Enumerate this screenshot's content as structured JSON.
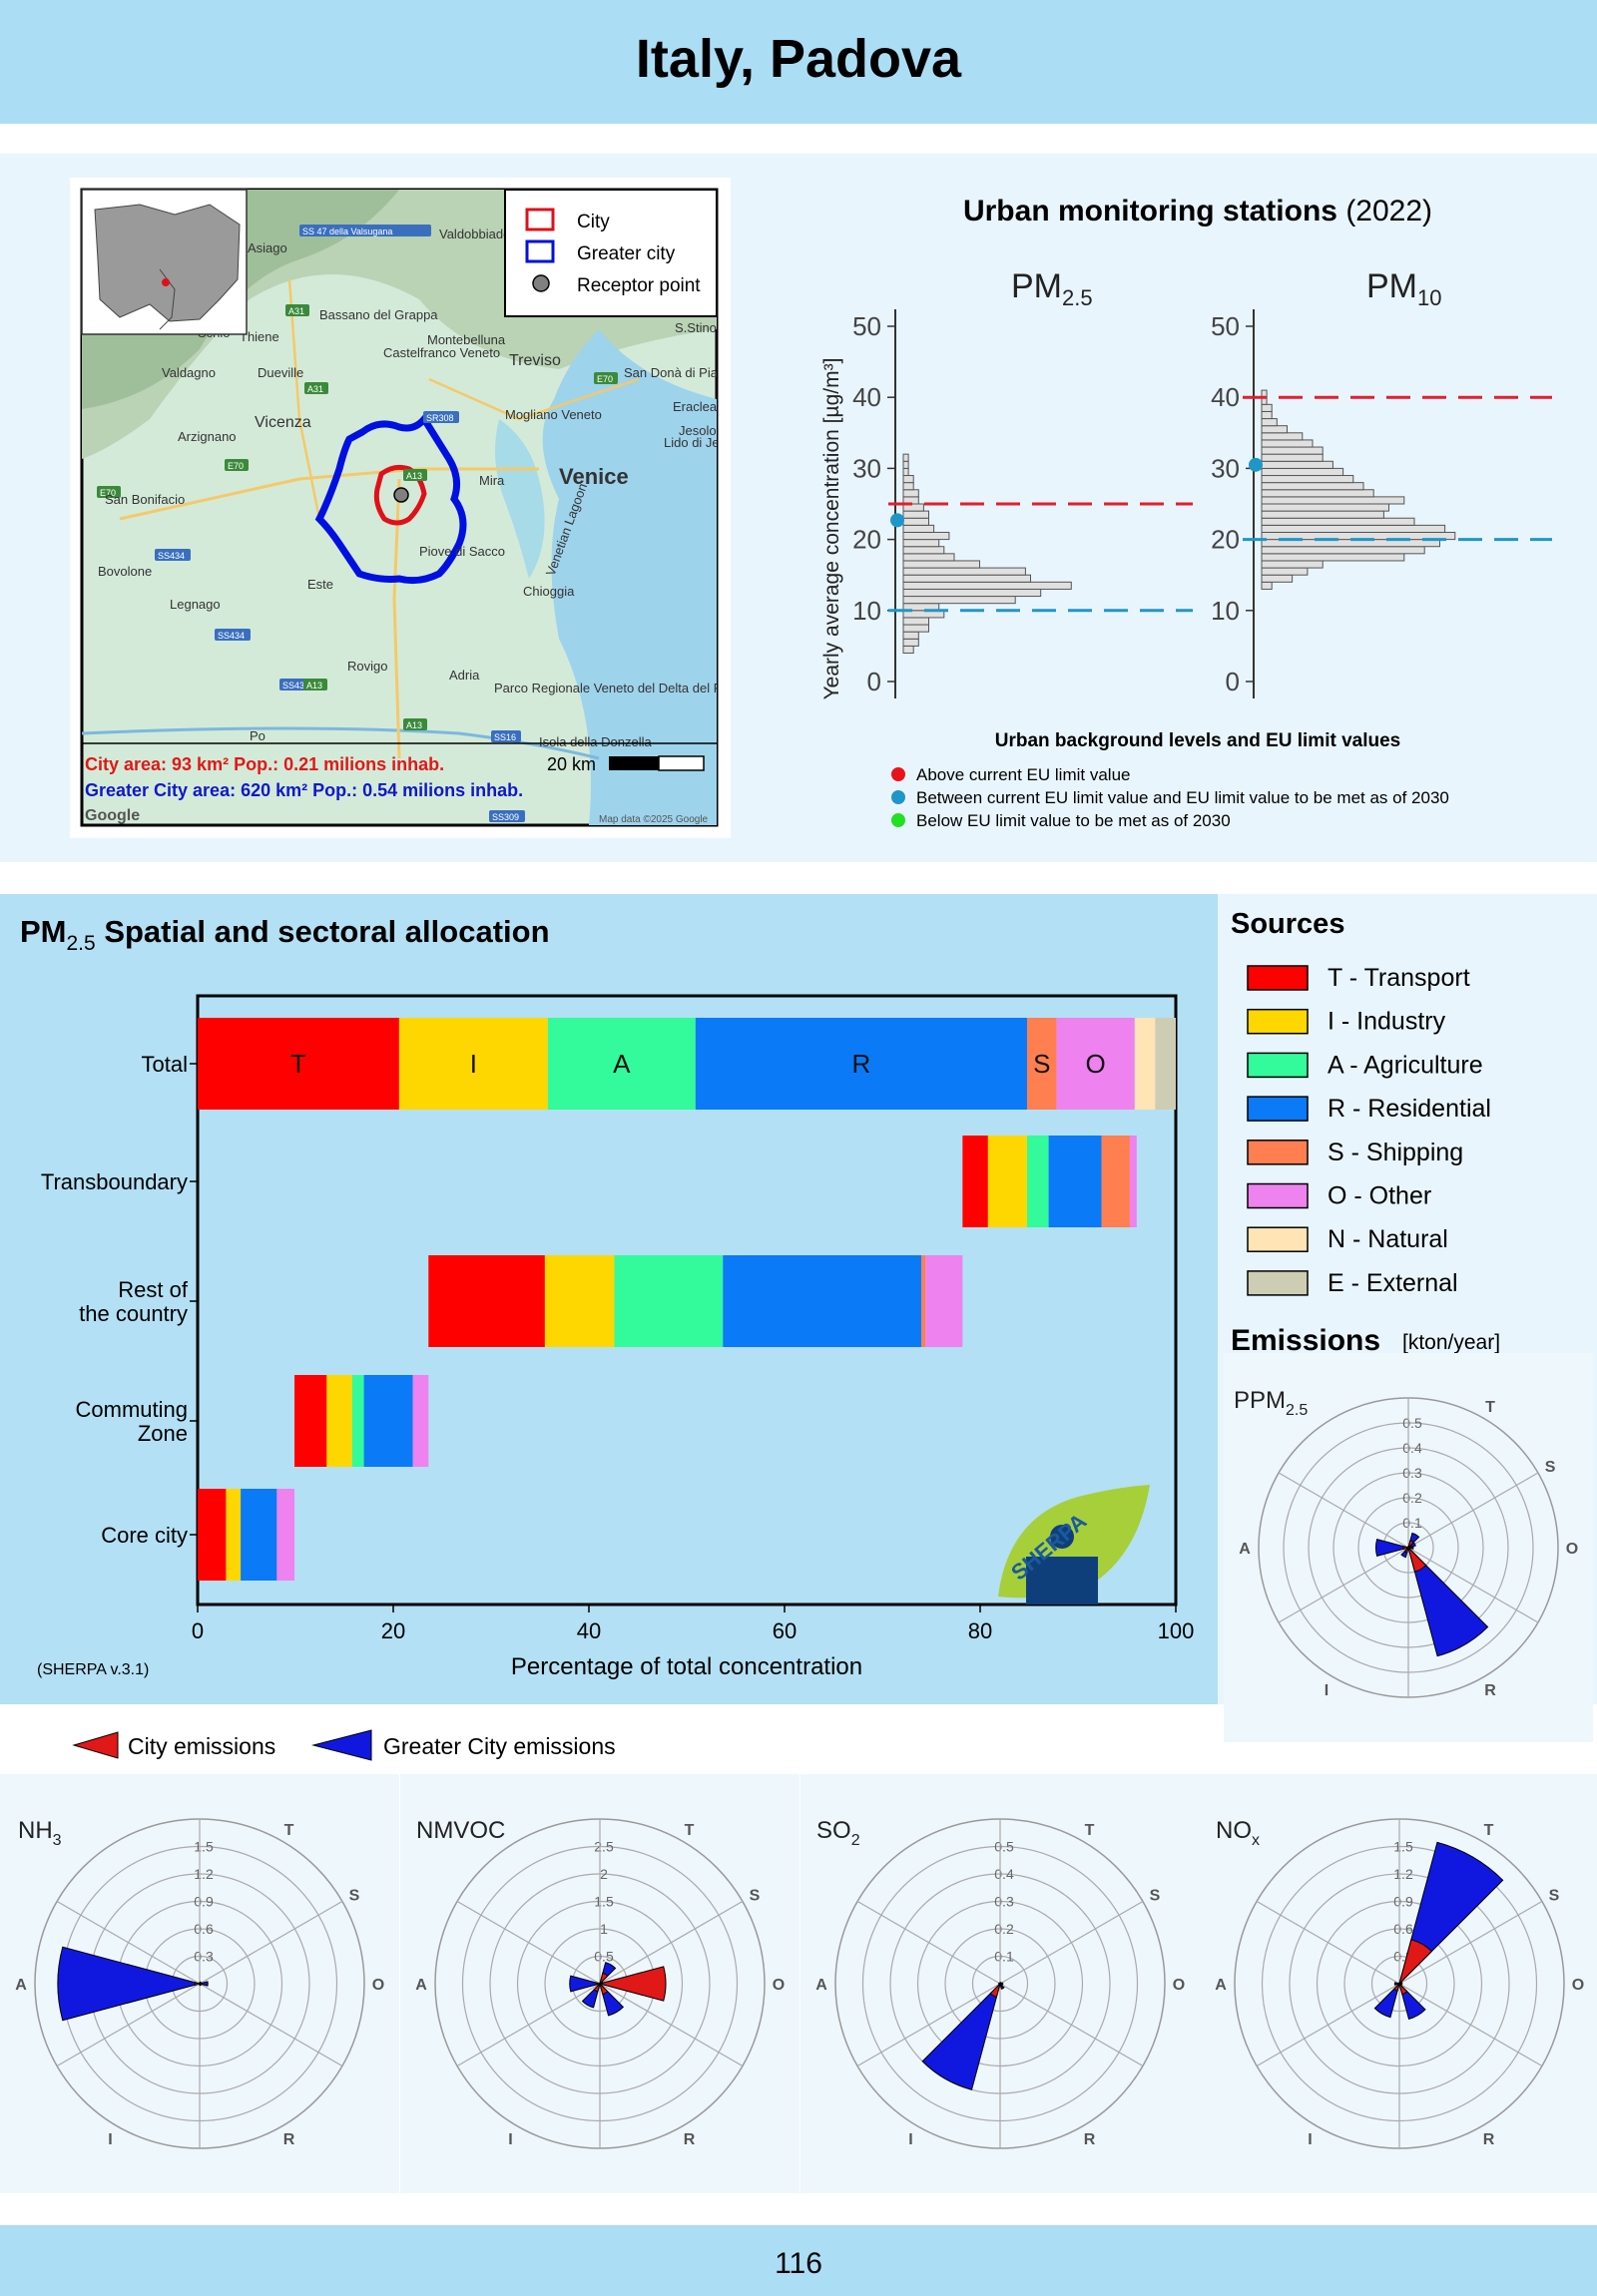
{
  "header": {
    "title": "Italy, Padova"
  },
  "map": {
    "legend": [
      "City",
      "Greater city",
      "Receptor point"
    ],
    "labels": [
      "Venice",
      "Vicenza",
      "Treviso",
      "Chioggia",
      "Rovigo",
      "Este",
      "Legnago",
      "Bovolone",
      "San Bonifacio",
      "Arzignano",
      "Valdagno",
      "Schio",
      "Thiene",
      "Dueville",
      "Asiago",
      "Bassano del Grappa",
      "Castelfranco Veneto",
      "Montebelluna",
      "Valdobbiadene",
      "San Donà di Piave",
      "Eraclea",
      "Jesolo",
      "Lido di Jesolo",
      "Mogliano Veneto",
      "Mira",
      "Piove di Sacco",
      "Adria",
      "Parco Regionale Veneto del Delta del Po",
      "Isola della Donzella",
      "Venetian Lagoon",
      "Po",
      "S.Stino di Livenza"
    ],
    "roads": [
      "SS 47 della Valsugana",
      "SS434",
      "SS434",
      "SS434",
      "SR308",
      "A13",
      "A13",
      "A13",
      "A31",
      "A31",
      "E70",
      "E70",
      "E70",
      "SS16",
      "SS309"
    ],
    "scale": "20 km",
    "city_area": "City area: 93 km² Pop.: 0.21 milions inhab.",
    "greater_area": "Greater City area: 620 km² Pop.: 0.54 milions inhab.",
    "google": "Google",
    "attribution": "Map data ©2025 Google"
  },
  "monitoring": {
    "title_bold": "Urban monitoring stations",
    "title_year": "(2022)",
    "pm25_label": "PM",
    "pm25_sub": "2.5",
    "pm10_label": "PM",
    "pm10_sub": "10",
    "ylabel": "Yearly average concentration [µg/m³]",
    "subtitle": "Urban background levels and EU limit values",
    "legend": [
      {
        "text": "Above current EU limit value",
        "color": "#e8141a"
      },
      {
        "text": "Between current EU limit value and EU limit value to be met as of 2030",
        "color": "#1f96c8"
      },
      {
        "text": "Below EU limit value to be met as of 2030",
        "color": "#22e022"
      }
    ]
  },
  "allocation": {
    "title": "PM",
    "title_sub": "2.5",
    "title_rest": " Spatial and sectoral allocation",
    "xlabel": "Percentage of total concentration",
    "version": "(SHERPA v.3.1)",
    "logo_text": "SHERPA"
  },
  "sources": {
    "title": "Sources",
    "items": [
      {
        "code": "T",
        "label": "T - Transport",
        "color": "#ff0000"
      },
      {
        "code": "I",
        "label": "I - Industry",
        "color": "#ffd700"
      },
      {
        "code": "A",
        "label": "A - Agriculture",
        "color": "#33fa9b"
      },
      {
        "code": "R",
        "label": "R - Residential",
        "color": "#0a7af7"
      },
      {
        "code": "S",
        "label": "S - Shipping",
        "color": "#ff7f50"
      },
      {
        "code": "O",
        "label": "O - Other",
        "color": "#ee82ee"
      },
      {
        "code": "N",
        "label": "N - Natural",
        "color": "#ffe4b5"
      },
      {
        "code": "E",
        "label": "E - External",
        "color": "#cdcdb4"
      }
    ]
  },
  "emissions": {
    "title": "Emissions",
    "unit": "[kton/year]",
    "city_label": "City emissions",
    "greater_label": "Greater City emissions"
  },
  "page": {
    "number": "116"
  },
  "chart_data": [
    {
      "type": "histogram",
      "name": "pm25",
      "title": "PM2.5",
      "ylim": [
        0,
        52
      ],
      "yticks": [
        0,
        10,
        20,
        30,
        40,
        50
      ],
      "bin_width": 1,
      "bins_start": 4,
      "counts": [
        2,
        3,
        3,
        5,
        5,
        8,
        7,
        22,
        27,
        33,
        25,
        24,
        15,
        10,
        8,
        7,
        9,
        6,
        5,
        5,
        4,
        3,
        3,
        2,
        2,
        1,
        1,
        1
      ],
      "limit_current": 25,
      "limit_2030": 10,
      "city_value": 22.7,
      "city_status": "between"
    },
    {
      "type": "histogram",
      "name": "pm10",
      "title": "PM10",
      "ylim": [
        0,
        52
      ],
      "yticks": [
        0,
        10,
        20,
        30,
        40,
        50
      ],
      "bin_width": 1,
      "bins_start": 13,
      "counts": [
        2,
        6,
        9,
        12,
        28,
        32,
        35,
        38,
        36,
        30,
        24,
        25,
        28,
        22,
        20,
        18,
        16,
        14,
        12,
        12,
        10,
        8,
        5,
        3,
        2,
        2,
        1,
        1
      ],
      "limit_current": 40,
      "limit_2030": 20,
      "city_value": 30.5,
      "city_status": "between"
    },
    {
      "type": "stacked-bar",
      "name": "allocation",
      "orientation": "horizontal",
      "xlim": [
        0,
        100
      ],
      "xticks": [
        0,
        20,
        40,
        60,
        80,
        100
      ],
      "series_order": [
        "T",
        "I",
        "A",
        "R",
        "S",
        "O",
        "N",
        "E"
      ],
      "rows": [
        {
          "label": "Total",
          "start": 0,
          "segments": {
            "T": 20.6,
            "I": 15.2,
            "A": 15.1,
            "R": 33.9,
            "S": 3.0,
            "O": 8.0,
            "N": 2.1,
            "E": 2.1
          },
          "annotations": [
            "T",
            "I",
            "A",
            "R",
            "S",
            "O"
          ]
        },
        {
          "label": "Transboundary",
          "start": 78.2,
          "segments": {
            "T": 2.6,
            "I": 4.0,
            "A": 2.2,
            "R": 5.4,
            "S": 2.9,
            "O": 0.7
          }
        },
        {
          "label": "Rest of the country",
          "start": 23.6,
          "segments": {
            "T": 11.9,
            "I": 7.1,
            "A": 11.1,
            "R": 20.3,
            "S": 0.4,
            "O": 3.8
          }
        },
        {
          "label": "Commuting Zone",
          "start": 9.9,
          "segments": {
            "T": 3.3,
            "I": 2.6,
            "A": 1.2,
            "R": 5.0,
            "O": 1.6
          }
        },
        {
          "label": "Core city",
          "start": 0,
          "segments": {
            "T": 2.9,
            "I": 1.5,
            "R": 3.7,
            "O": 1.8
          }
        }
      ]
    },
    {
      "type": "polar-bar",
      "name": "PPM2.5",
      "label": "PPM",
      "label_sub": "2.5",
      "sectors": [
        {
          "code": "T",
          "angle": 30
        },
        {
          "code": "S",
          "angle": 60
        },
        {
          "code": "O",
          "angle": 90
        },
        {
          "code": "R",
          "angle": 150
        },
        {
          "code": "I",
          "angle": 210
        },
        {
          "code": "A",
          "angle": 270
        }
      ],
      "rmax": 0.6,
      "rings": [
        0.1,
        0.2,
        0.3,
        0.4,
        0.5
      ],
      "greater": {
        "T": 0.06,
        "S": 0.03,
        "O": 0.02,
        "R": 0.45,
        "I": 0.04,
        "A": 0.13
      },
      "city": {
        "T": 0.03,
        "S": 0.01,
        "O": 0.01,
        "R": 0.1,
        "I": 0.02,
        "A": 0.02
      }
    },
    {
      "type": "polar-bar",
      "name": "NH3",
      "label": "NH",
      "label_sub": "3",
      "sectors": [
        {
          "code": "T",
          "angle": 30
        },
        {
          "code": "S",
          "angle": 60
        },
        {
          "code": "O",
          "angle": 90
        },
        {
          "code": "R",
          "angle": 150
        },
        {
          "code": "I",
          "angle": 210
        },
        {
          "code": "A",
          "angle": 270
        }
      ],
      "rmax": 1.8,
      "rings": [
        0.3,
        0.6,
        0.9,
        1.2,
        1.5
      ],
      "greater": {
        "T": 0.02,
        "S": 0.0,
        "O": 0.09,
        "R": 0.02,
        "I": 0.01,
        "A": 1.55
      },
      "city": {
        "T": 0.01,
        "S": 0.0,
        "O": 0.02,
        "R": 0.01,
        "I": 0.0,
        "A": 0.05
      }
    },
    {
      "type": "polar-bar",
      "name": "NMVOC",
      "label": "NMVOC",
      "label_sub": "",
      "sectors": [
        {
          "code": "T",
          "angle": 30
        },
        {
          "code": "S",
          "angle": 60
        },
        {
          "code": "O",
          "angle": 90
        },
        {
          "code": "R",
          "angle": 150
        },
        {
          "code": "I",
          "angle": 210
        },
        {
          "code": "A",
          "angle": 270
        }
      ],
      "rmax": 3.0,
      "rings": [
        0.5,
        1,
        1.5,
        2,
        2.5
      ],
      "greater": {
        "T": 0.4,
        "S": 0.05,
        "O": 0.8,
        "R": 0.6,
        "I": 0.45,
        "A": 0.55
      },
      "city": {
        "T": 0.2,
        "S": 0.02,
        "O": 1.2,
        "R": 0.2,
        "I": 0.15,
        "A": 0.05
      }
    },
    {
      "type": "polar-bar",
      "name": "SO2",
      "label": "SO",
      "label_sub": "2",
      "sectors": [
        {
          "code": "T",
          "angle": 30
        },
        {
          "code": "S",
          "angle": 60
        },
        {
          "code": "O",
          "angle": 90
        },
        {
          "code": "R",
          "angle": 150
        },
        {
          "code": "I",
          "angle": 210
        },
        {
          "code": "A",
          "angle": 270
        }
      ],
      "rmax": 0.6,
      "rings": [
        0.1,
        0.2,
        0.3,
        0.4,
        0.5
      ],
      "greater": {
        "T": 0.005,
        "S": 0.005,
        "O": 0.01,
        "R": 0.02,
        "I": 0.4,
        "A": 0.005
      },
      "city": {
        "T": 0.002,
        "S": 0.002,
        "O": 0.005,
        "R": 0.01,
        "I": 0.05,
        "A": 0.002
      }
    },
    {
      "type": "polar-bar",
      "name": "NOx",
      "label": "NO",
      "label_sub": "x",
      "sectors": [
        {
          "code": "T",
          "angle": 30
        },
        {
          "code": "S",
          "angle": 60
        },
        {
          "code": "O",
          "angle": 90
        },
        {
          "code": "R",
          "angle": 150
        },
        {
          "code": "I",
          "angle": 210
        },
        {
          "code": "A",
          "angle": 270
        }
      ],
      "rmax": 1.8,
      "rings": [
        0.3,
        0.6,
        0.9,
        1.2,
        1.5
      ],
      "greater": {
        "T": 1.6,
        "S": 0.03,
        "O": 0.03,
        "R": 0.4,
        "I": 0.38,
        "A": 0.05
      },
      "city": {
        "T": 0.5,
        "S": 0.01,
        "O": 0.01,
        "R": 0.12,
        "I": 0.08,
        "A": 0.02
      }
    }
  ]
}
